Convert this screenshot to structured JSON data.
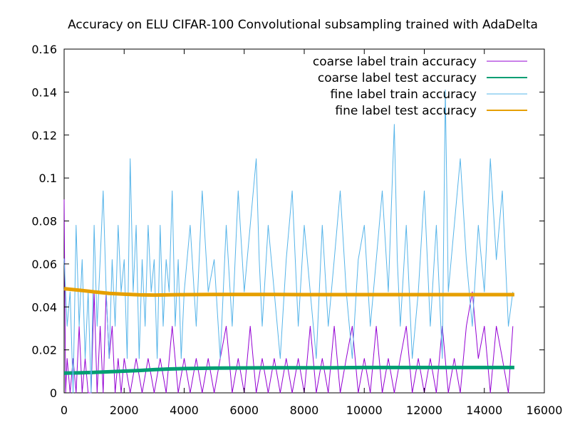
{
  "chart_data": {
    "type": "line",
    "title": "Accuracy on ELU CIFAR-100 Convolutional subsampling trained with AdaDelta",
    "xlabel": "",
    "ylabel": "",
    "xlim": [
      0,
      16000
    ],
    "ylim": [
      0,
      0.16
    ],
    "xticks": [
      0,
      2000,
      4000,
      6000,
      8000,
      10000,
      12000,
      14000,
      16000
    ],
    "yticks": [
      0,
      0.02,
      0.04,
      0.06,
      0.08,
      0.1,
      0.12,
      0.14,
      0.16
    ],
    "grid": false,
    "legend_position": "top-right",
    "series": [
      {
        "name": "coarse label train accuracy",
        "color": "#9400d3",
        "x": [
          0,
          50,
          100,
          200,
          300,
          400,
          500,
          600,
          700,
          800,
          900,
          1000,
          1100,
          1200,
          1300,
          1400,
          1500,
          1600,
          1700,
          1800,
          1900,
          2000,
          2200,
          2400,
          2600,
          2800,
          3000,
          3200,
          3400,
          3600,
          3800,
          4000,
          4200,
          4400,
          4600,
          4800,
          5000,
          5200,
          5400,
          5600,
          5800,
          6000,
          6200,
          6400,
          6600,
          6800,
          7000,
          7200,
          7400,
          7600,
          7800,
          8000,
          8200,
          8400,
          8600,
          8800,
          9000,
          9200,
          9400,
          9600,
          9800,
          10000,
          10200,
          10400,
          10600,
          10800,
          11000,
          11200,
          11400,
          11600,
          11800,
          12000,
          12200,
          12400,
          12600,
          12800,
          13000,
          13200,
          13400,
          13600,
          13800,
          14000,
          14200,
          14400,
          14600,
          14800,
          14950
        ],
        "values": [
          0.09,
          0.0,
          0.016,
          0.0,
          0.016,
          0.0,
          0.031,
          0.0,
          0.016,
          0.0,
          0.0,
          0.047,
          0.0,
          0.031,
          0.0,
          0.047,
          0.016,
          0.031,
          0.0,
          0.016,
          0.0,
          0.016,
          0.0,
          0.016,
          0.0,
          0.016,
          0.0,
          0.016,
          0.0,
          0.031,
          0.0,
          0.016,
          0.0,
          0.016,
          0.0,
          0.016,
          0.0,
          0.016,
          0.031,
          0.0,
          0.016,
          0.0,
          0.031,
          0.0,
          0.016,
          0.0,
          0.016,
          0.0,
          0.016,
          0.0,
          0.016,
          0.0,
          0.031,
          0.0,
          0.016,
          0.0,
          0.031,
          0.0,
          0.016,
          0.031,
          0.0,
          0.016,
          0.0,
          0.031,
          0.0,
          0.016,
          0.0,
          0.016,
          0.031,
          0.0,
          0.016,
          0.0,
          0.016,
          0.0,
          0.031,
          0.0,
          0.016,
          0.0,
          0.031,
          0.047,
          0.016,
          0.031,
          0.0,
          0.031,
          0.016,
          0.0,
          0.031
        ]
      },
      {
        "name": "coarse label test accuracy",
        "color": "#009e73",
        "x": [
          0,
          500,
          1000,
          1500,
          2000,
          2500,
          3000,
          3500,
          4000,
          5000,
          6000,
          7000,
          8000,
          9000,
          10000,
          11000,
          12000,
          13000,
          14000,
          15000
        ],
        "values": [
          0.0092,
          0.0093,
          0.0095,
          0.0098,
          0.0101,
          0.0104,
          0.0108,
          0.0111,
          0.0113,
          0.0115,
          0.0116,
          0.0117,
          0.0117,
          0.0117,
          0.0118,
          0.0118,
          0.0118,
          0.0118,
          0.0118,
          0.0118
        ]
      },
      {
        "name": "fine label train accuracy",
        "color": "#56b4e9",
        "x": [
          0,
          100,
          200,
          300,
          400,
          500,
          600,
          700,
          800,
          900,
          1000,
          1100,
          1200,
          1300,
          1400,
          1500,
          1600,
          1700,
          1800,
          1900,
          2000,
          2100,
          2200,
          2300,
          2400,
          2500,
          2600,
          2700,
          2800,
          2900,
          3000,
          3100,
          3200,
          3300,
          3400,
          3500,
          3600,
          3700,
          3800,
          3900,
          4000,
          4200,
          4400,
          4600,
          4800,
          5000,
          5200,
          5400,
          5600,
          5800,
          6000,
          6200,
          6400,
          6500,
          6600,
          6800,
          7000,
          7200,
          7400,
          7600,
          7800,
          8000,
          8200,
          8400,
          8600,
          8800,
          9000,
          9200,
          9400,
          9600,
          9800,
          10000,
          10200,
          10400,
          10600,
          10800,
          11000,
          11100,
          11200,
          11400,
          11600,
          11800,
          12000,
          12200,
          12400,
          12600,
          12700,
          12800,
          13000,
          13200,
          13400,
          13600,
          13800,
          14000,
          14200,
          14400,
          14600,
          14800,
          14950
        ],
        "values": [
          0.0625,
          0.031,
          0.047,
          0.0,
          0.078,
          0.031,
          0.062,
          0.016,
          0.047,
          0.0,
          0.078,
          0.031,
          0.062,
          0.094,
          0.047,
          0.016,
          0.062,
          0.031,
          0.078,
          0.047,
          0.062,
          0.016,
          0.109,
          0.047,
          0.078,
          0.016,
          0.062,
          0.031,
          0.078,
          0.047,
          0.062,
          0.016,
          0.078,
          0.031,
          0.062,
          0.047,
          0.094,
          0.031,
          0.062,
          0.016,
          0.047,
          0.078,
          0.031,
          0.094,
          0.047,
          0.062,
          0.016,
          0.078,
          0.031,
          0.094,
          0.047,
          0.078,
          0.109,
          0.062,
          0.031,
          0.078,
          0.047,
          0.016,
          0.062,
          0.094,
          0.031,
          0.078,
          0.047,
          0.016,
          0.078,
          0.031,
          0.062,
          0.094,
          0.047,
          0.016,
          0.062,
          0.078,
          0.031,
          0.062,
          0.094,
          0.047,
          0.125,
          0.062,
          0.031,
          0.078,
          0.016,
          0.047,
          0.094,
          0.031,
          0.078,
          0.016,
          0.141,
          0.047,
          0.078,
          0.109,
          0.062,
          0.031,
          0.078,
          0.047,
          0.109,
          0.062,
          0.094,
          0.031,
          0.047
        ]
      },
      {
        "name": "fine label test accuracy",
        "color": "#e69f00",
        "x": [
          0,
          500,
          1000,
          1500,
          2000,
          2500,
          3000,
          3500,
          4000,
          5000,
          6000,
          7000,
          8000,
          9000,
          10000,
          11000,
          12000,
          13000,
          14000,
          15000
        ],
        "values": [
          0.0485,
          0.0478,
          0.047,
          0.0463,
          0.0459,
          0.0456,
          0.0455,
          0.0456,
          0.0457,
          0.0458,
          0.0458,
          0.0458,
          0.0457,
          0.0457,
          0.0457,
          0.0457,
          0.0457,
          0.0457,
          0.0457,
          0.0457
        ]
      }
    ]
  }
}
